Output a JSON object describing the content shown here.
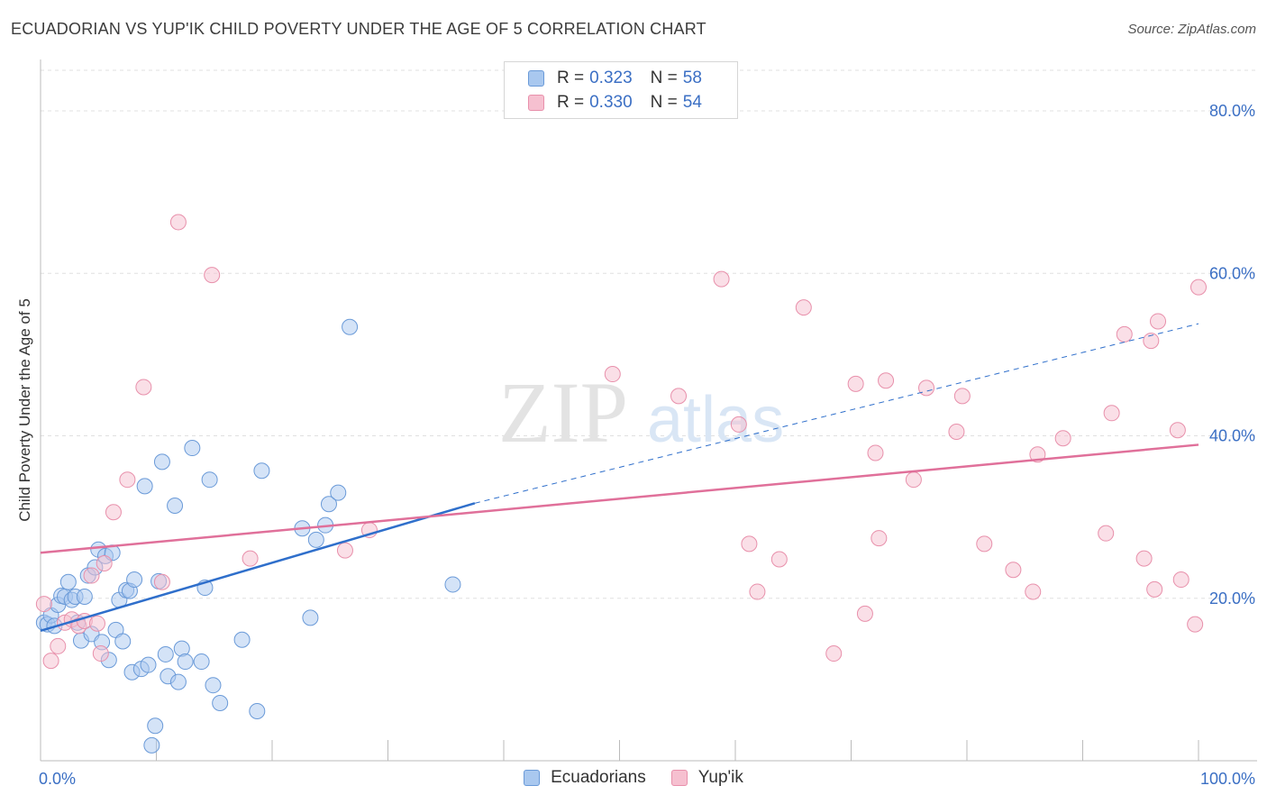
{
  "title": "ECUADORIAN VS YUP'IK CHILD POVERTY UNDER THE AGE OF 5 CORRELATION CHART",
  "source": "Source: ZipAtlas.com",
  "watermark": {
    "zip": "ZIP",
    "atlas": "atlas"
  },
  "legend": {
    "ecuadorians": {
      "r_label": "R =",
      "r_value": "0.323",
      "n_label": "N =",
      "n_value": "58"
    },
    "yupik": {
      "r_label": "R =",
      "r_value": "0.330",
      "n_label": "N =",
      "n_value": "54"
    }
  },
  "bottom_legend": {
    "ecuadorians": "Ecuadorians",
    "yupik": "Yup'ik"
  },
  "colors": {
    "blue_fill": "#a9c8ef",
    "blue_stroke": "#6a9ad8",
    "blue_line": "#2f6fcb",
    "pink_fill": "#f6c0d0",
    "pink_stroke": "#e890ab",
    "pink_line": "#e0709a",
    "axis_text": "#3b6fc4",
    "grid": "#e0e0e0"
  },
  "chart_data": {
    "type": "scatter",
    "title": "ECUADORIAN VS YUP'IK CHILD POVERTY UNDER THE AGE OF 5 CORRELATION CHART",
    "xlabel": "",
    "ylabel": "Child Poverty Under the Age of 5",
    "xlim": [
      0,
      100
    ],
    "ylim": [
      0,
      85
    ],
    "x_tick_labels": [
      "0.0%",
      "100.0%"
    ],
    "y_ticks": [
      20,
      40,
      60,
      80
    ],
    "y_tick_labels": [
      "20.0%",
      "40.0%",
      "60.0%",
      "80.0%"
    ],
    "grid": true,
    "legend_position": "top-center",
    "series": [
      {
        "name": "Ecuadorians",
        "points": [
          [
            0.3,
            17.0
          ],
          [
            0.6,
            16.8
          ],
          [
            0.9,
            17.9
          ],
          [
            1.2,
            16.6
          ],
          [
            1.5,
            19.2
          ],
          [
            1.8,
            20.3
          ],
          [
            2.1,
            20.2
          ],
          [
            2.4,
            22.0
          ],
          [
            2.7,
            19.8
          ],
          [
            3.0,
            20.2
          ],
          [
            3.2,
            17.0
          ],
          [
            3.5,
            14.8
          ],
          [
            3.8,
            20.2
          ],
          [
            4.1,
            22.8
          ],
          [
            4.4,
            15.6
          ],
          [
            4.7,
            23.8
          ],
          [
            5.0,
            26.0
          ],
          [
            5.3,
            14.6
          ],
          [
            5.6,
            25.2
          ],
          [
            5.9,
            12.4
          ],
          [
            6.2,
            25.6
          ],
          [
            6.5,
            16.1
          ],
          [
            6.8,
            19.8
          ],
          [
            7.1,
            14.7
          ],
          [
            7.4,
            21.0
          ],
          [
            7.7,
            20.9
          ],
          [
            7.9,
            10.9
          ],
          [
            8.1,
            22.3
          ],
          [
            8.7,
            11.3
          ],
          [
            9.0,
            33.8
          ],
          [
            9.3,
            11.8
          ],
          [
            9.6,
            1.9
          ],
          [
            9.9,
            4.3
          ],
          [
            10.2,
            22.1
          ],
          [
            10.5,
            36.8
          ],
          [
            10.8,
            13.1
          ],
          [
            11.0,
            10.4
          ],
          [
            11.6,
            31.4
          ],
          [
            11.9,
            9.7
          ],
          [
            12.2,
            13.8
          ],
          [
            12.5,
            12.2
          ],
          [
            13.1,
            38.5
          ],
          [
            13.9,
            12.2
          ],
          [
            14.2,
            21.3
          ],
          [
            14.6,
            34.6
          ],
          [
            14.9,
            9.3
          ],
          [
            15.5,
            7.1
          ],
          [
            17.4,
            14.9
          ],
          [
            18.7,
            6.1
          ],
          [
            19.1,
            35.7
          ],
          [
            22.6,
            28.6
          ],
          [
            23.3,
            17.6
          ],
          [
            23.8,
            27.2
          ],
          [
            24.6,
            29.0
          ],
          [
            24.9,
            31.6
          ],
          [
            25.7,
            33.0
          ],
          [
            26.7,
            53.4
          ],
          [
            35.6,
            21.7
          ]
        ]
      },
      {
        "name": "Yup'ik",
        "points": [
          [
            0.3,
            19.3
          ],
          [
            0.9,
            12.3
          ],
          [
            1.5,
            14.1
          ],
          [
            2.1,
            17.0
          ],
          [
            2.7,
            17.4
          ],
          [
            3.3,
            16.6
          ],
          [
            3.8,
            17.2
          ],
          [
            4.4,
            22.8
          ],
          [
            4.9,
            16.9
          ],
          [
            5.2,
            13.2
          ],
          [
            5.5,
            24.3
          ],
          [
            6.3,
            30.6
          ],
          [
            7.5,
            34.6
          ],
          [
            8.9,
            46.0
          ],
          [
            10.5,
            22.0
          ],
          [
            11.9,
            66.3
          ],
          [
            14.8,
            59.8
          ],
          [
            18.1,
            24.9
          ],
          [
            26.3,
            25.9
          ],
          [
            28.4,
            28.4
          ],
          [
            49.4,
            47.6
          ],
          [
            55.1,
            44.9
          ],
          [
            58.8,
            59.3
          ],
          [
            60.3,
            41.4
          ],
          [
            61.2,
            26.7
          ],
          [
            61.9,
            20.8
          ],
          [
            63.8,
            24.8
          ],
          [
            65.9,
            55.8
          ],
          [
            68.5,
            13.2
          ],
          [
            70.4,
            46.4
          ],
          [
            71.2,
            18.1
          ],
          [
            72.1,
            37.9
          ],
          [
            72.4,
            27.4
          ],
          [
            73.0,
            46.8
          ],
          [
            75.4,
            34.6
          ],
          [
            76.5,
            45.9
          ],
          [
            79.1,
            40.5
          ],
          [
            79.6,
            44.9
          ],
          [
            81.5,
            26.7
          ],
          [
            84.0,
            23.5
          ],
          [
            85.7,
            20.8
          ],
          [
            86.1,
            37.7
          ],
          [
            88.3,
            39.7
          ],
          [
            92.0,
            28.0
          ],
          [
            92.5,
            42.8
          ],
          [
            93.6,
            52.5
          ],
          [
            95.3,
            24.9
          ],
          [
            95.9,
            51.7
          ],
          [
            96.2,
            21.1
          ],
          [
            96.5,
            54.1
          ],
          [
            98.2,
            40.7
          ],
          [
            98.5,
            22.3
          ],
          [
            99.7,
            16.8
          ],
          [
            100.0,
            58.3
          ]
        ]
      }
    ],
    "trendlines": [
      {
        "series": "Ecuadorians",
        "solid_from": [
          0,
          16.0
        ],
        "solid_to": [
          37.5,
          31.7
        ],
        "dashed_to": [
          100,
          53.8
        ]
      },
      {
        "series": "Yup'ik",
        "from": [
          0,
          25.6
        ],
        "to": [
          100,
          38.9
        ]
      }
    ]
  }
}
